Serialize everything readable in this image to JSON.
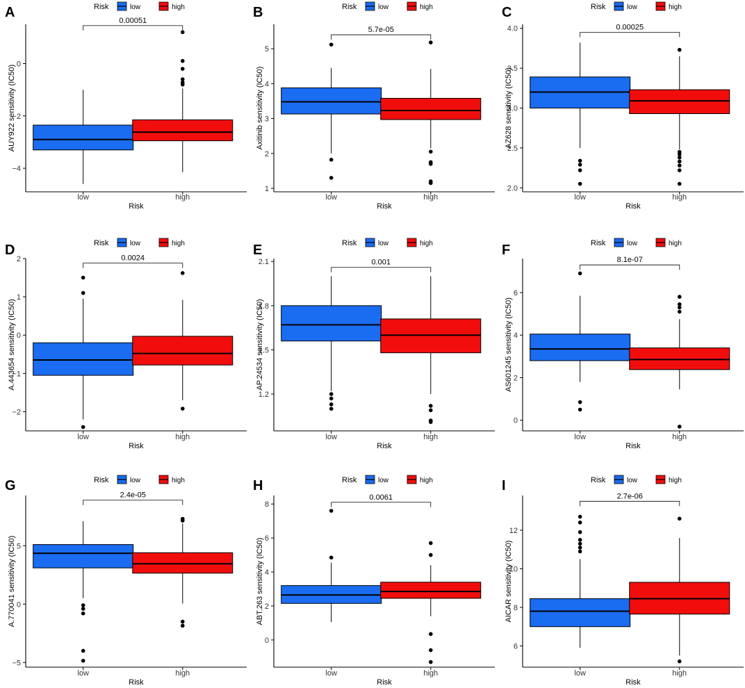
{
  "figure": {
    "title": "",
    "colors": {
      "low": "#1a6cf0",
      "high": "#f20d0d",
      "axis": "#000000"
    }
  },
  "legend_title": "Risk",
  "chart_data": [
    {
      "panel": "A",
      "type": "box",
      "title": "",
      "xlabel": "Risk",
      "ylabel": "AUY922 sensitivity (IC50)",
      "categories": [
        "low",
        "high"
      ],
      "ylim": [
        -4.9,
        1.5
      ],
      "yticks": [
        -4,
        -2,
        0
      ],
      "pvalue": "0.00051",
      "bracket_y": 1.45,
      "series": [
        {
          "name": "low",
          "color": "#1a6cf0",
          "lower_whisker": -4.6,
          "q1": -3.3,
          "median": -2.9,
          "q3": -2.35,
          "upper_whisker": -1.0,
          "outliers": []
        },
        {
          "name": "high",
          "color": "#f20d0d",
          "lower_whisker": -4.15,
          "q1": -2.95,
          "median": -2.62,
          "q3": -2.15,
          "upper_whisker": -0.95,
          "outliers": [
            1.2,
            0.1,
            -0.2,
            -0.6,
            -0.72,
            -0.8
          ]
        }
      ]
    },
    {
      "panel": "B",
      "type": "box",
      "title": "",
      "xlabel": "Risk",
      "ylabel": "Axitinib sensitivity (IC50)",
      "categories": [
        "low",
        "high"
      ],
      "ylim": [
        0.9,
        5.7
      ],
      "yticks": [
        1,
        2,
        3,
        4,
        5
      ],
      "pvalue": "5.7e-05",
      "bracket_y": 5.4,
      "series": [
        {
          "name": "low",
          "color": "#1a6cf0",
          "lower_whisker": 2.0,
          "q1": 3.13,
          "median": 3.48,
          "q3": 3.88,
          "upper_whisker": 4.45,
          "outliers": [
            5.12,
            1.82,
            1.3
          ]
        },
        {
          "name": "high",
          "color": "#f20d0d",
          "lower_whisker": 2.15,
          "q1": 2.97,
          "median": 3.23,
          "q3": 3.58,
          "upper_whisker": 4.42,
          "outliers": [
            5.18,
            2.05,
            1.75,
            1.7,
            1.2,
            1.15
          ]
        }
      ]
    },
    {
      "panel": "C",
      "type": "box",
      "title": "",
      "xlabel": "Risk",
      "ylabel": "AZ628 sensitivity (IC50)",
      "categories": [
        "low",
        "high"
      ],
      "ylim": [
        1.95,
        4.05
      ],
      "yticks": [
        2.0,
        2.5,
        3.0,
        3.5,
        4.0
      ],
      "pvalue": "0.00025",
      "bracket_y": 3.95,
      "series": [
        {
          "name": "low",
          "color": "#1a6cf0",
          "lower_whisker": 2.5,
          "q1": 3.0,
          "median": 3.2,
          "q3": 3.39,
          "upper_whisker": 3.82,
          "outliers": [
            2.34,
            2.29,
            2.22,
            2.05
          ]
        },
        {
          "name": "high",
          "color": "#f20d0d",
          "lower_whisker": 2.48,
          "q1": 2.93,
          "median": 3.09,
          "q3": 3.23,
          "upper_whisker": 3.65,
          "outliers": [
            3.73,
            2.45,
            2.42,
            2.38,
            2.33,
            2.28,
            2.22,
            2.05
          ]
        }
      ]
    },
    {
      "panel": "D",
      "type": "box",
      "title": "",
      "xlabel": "Risk",
      "ylabel": "A.443654 sensitivity (IC50)",
      "categories": [
        "low",
        "high"
      ],
      "ylim": [
        -2.5,
        2.0
      ],
      "yticks": [
        -2,
        -1,
        0,
        1,
        2
      ],
      "pvalue": "0.0024",
      "bracket_y": 1.88,
      "series": [
        {
          "name": "low",
          "color": "#1a6cf0",
          "lower_whisker": -2.2,
          "q1": -1.05,
          "median": -0.65,
          "q3": -0.2,
          "upper_whisker": 0.95,
          "outliers": [
            1.5,
            1.1,
            -2.4
          ]
        },
        {
          "name": "high",
          "color": "#f20d0d",
          "lower_whisker": -1.7,
          "q1": -0.78,
          "median": -0.48,
          "q3": -0.03,
          "upper_whisker": 0.92,
          "outliers": [
            1.62,
            -1.92
          ]
        }
      ]
    },
    {
      "panel": "E",
      "type": "box",
      "title": "",
      "xlabel": "Risk",
      "ylabel": "AP.24534 sensitivity (IC50)",
      "categories": [
        "low",
        "high"
      ],
      "ylim": [
        0.95,
        2.12
      ],
      "yticks": [
        1.2,
        1.5,
        1.8,
        2.1
      ],
      "pvalue": "0.001",
      "bracket_y": 2.06,
      "series": [
        {
          "name": "low",
          "color": "#1a6cf0",
          "lower_whisker": 1.22,
          "q1": 1.56,
          "median": 1.67,
          "q3": 1.8,
          "upper_whisker": 2.0,
          "outliers": [
            1.2,
            1.17,
            1.13,
            1.1
          ]
        },
        {
          "name": "high",
          "color": "#f20d0d",
          "lower_whisker": 1.2,
          "q1": 1.48,
          "median": 1.6,
          "q3": 1.71,
          "upper_whisker": 2.0,
          "outliers": [
            1.12,
            1.09,
            1.02,
            1.01
          ]
        }
      ]
    },
    {
      "panel": "F",
      "type": "box",
      "title": "",
      "xlabel": "Risk",
      "ylabel": "AS601245 sensitivity (IC50)",
      "categories": [
        "low",
        "high"
      ],
      "ylim": [
        -0.5,
        7.6
      ],
      "yticks": [
        0,
        2,
        4,
        6
      ],
      "pvalue": "8.1e-07",
      "bracket_y": 7.3,
      "series": [
        {
          "name": "low",
          "color": "#1a6cf0",
          "lower_whisker": 1.8,
          "q1": 2.8,
          "median": 3.35,
          "q3": 4.05,
          "upper_whisker": 5.85,
          "outliers": [
            6.9,
            0.85,
            0.5
          ]
        },
        {
          "name": "high",
          "color": "#f20d0d",
          "lower_whisker": 1.45,
          "q1": 2.38,
          "median": 2.85,
          "q3": 3.4,
          "upper_whisker": 4.75,
          "outliers": [
            5.8,
            5.45,
            5.3,
            5.1,
            -0.3
          ]
        }
      ]
    },
    {
      "panel": "G",
      "type": "box",
      "title": "",
      "xlabel": "Risk",
      "ylabel": "A.770041 sensitivity (IC50)",
      "categories": [
        "low",
        "high"
      ],
      "ylim": [
        -5.4,
        9.3
      ],
      "yticks": [
        -5,
        0,
        5
      ],
      "pvalue": "2.4e-05",
      "bracket_y": 8.9,
      "series": [
        {
          "name": "low",
          "color": "#1a6cf0",
          "lower_whisker": 0.5,
          "q1": 3.1,
          "median": 4.35,
          "q3": 5.1,
          "upper_whisker": 7.1,
          "outliers": [
            -0.1,
            -0.4,
            -0.8,
            -4.0,
            -4.85
          ]
        },
        {
          "name": "high",
          "color": "#f20d0d",
          "lower_whisker": 0.05,
          "q1": 2.65,
          "median": 3.45,
          "q3": 4.4,
          "upper_whisker": 6.9,
          "outliers": [
            7.3,
            7.15,
            -1.5,
            -1.85
          ]
        }
      ]
    },
    {
      "panel": "H",
      "type": "box",
      "title": "",
      "xlabel": "Risk",
      "ylabel": "ABT.263 sensitivity (IC50)",
      "categories": [
        "low",
        "high"
      ],
      "ylim": [
        -1.6,
        8.5
      ],
      "yticks": [
        0,
        2,
        4,
        6,
        8
      ],
      "pvalue": "0.0061",
      "bracket_y": 8.1,
      "series": [
        {
          "name": "low",
          "color": "#1a6cf0",
          "lower_whisker": 1.05,
          "q1": 2.15,
          "median": 2.65,
          "q3": 3.2,
          "upper_whisker": 4.55,
          "outliers": [
            7.6,
            4.85
          ]
        },
        {
          "name": "high",
          "color": "#f20d0d",
          "lower_whisker": 1.4,
          "q1": 2.45,
          "median": 2.85,
          "q3": 3.4,
          "upper_whisker": 4.4,
          "outliers": [
            5.7,
            5.0,
            0.35,
            -0.6,
            -1.3
          ]
        }
      ]
    },
    {
      "panel": "I",
      "type": "box",
      "title": "",
      "xlabel": "Risk",
      "ylabel": "AICAR sensitivity (IC50)",
      "categories": [
        "low",
        "high"
      ],
      "ylim": [
        4.9,
        13.8
      ],
      "yticks": [
        6,
        8,
        10,
        12
      ],
      "pvalue": "2.7e-06",
      "bracket_y": 13.5,
      "series": [
        {
          "name": "low",
          "color": "#1a6cf0",
          "lower_whisker": 5.9,
          "q1": 7.0,
          "median": 7.8,
          "q3": 8.45,
          "upper_whisker": 10.5,
          "outliers": [
            12.7,
            12.4,
            11.9,
            11.5,
            11.3,
            11.1,
            10.9
          ]
        },
        {
          "name": "high",
          "color": "#f20d0d",
          "lower_whisker": 5.5,
          "q1": 7.65,
          "median": 8.45,
          "q3": 9.3,
          "upper_whisker": 11.6,
          "outliers": [
            12.6,
            5.2
          ]
        }
      ]
    }
  ]
}
